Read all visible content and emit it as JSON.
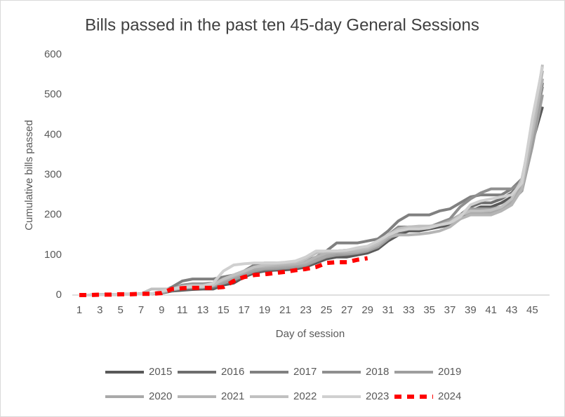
{
  "chart_data": {
    "type": "line",
    "title": "Bills passed in the past ten 45-day General Sessions",
    "x_label": "Day of session",
    "y_label": "Cumulative bills passed",
    "categories": [
      1,
      null,
      3,
      null,
      5,
      null,
      7,
      null,
      9,
      null,
      11,
      null,
      13,
      null,
      15,
      null,
      17,
      null,
      19,
      null,
      21,
      null,
      23,
      null,
      25,
      null,
      27,
      null,
      29,
      null,
      31,
      null,
      33,
      null,
      35,
      null,
      37,
      null,
      39,
      null,
      41,
      null,
      43,
      null,
      45,
      null
    ],
    "ylim": [
      0,
      600
    ],
    "yticks": [
      0,
      100,
      200,
      300,
      400,
      500,
      600
    ],
    "legend": "bottom",
    "series": [
      {
        "name": "2015",
        "color": "#595959",
        "values": [
          0,
          0,
          1,
          1,
          2,
          2,
          3,
          3,
          5,
          10,
          12,
          14,
          15,
          15,
          25,
          30,
          45,
          55,
          60,
          62,
          63,
          65,
          70,
          80,
          90,
          95,
          95,
          100,
          105,
          115,
          135,
          150,
          160,
          160,
          165,
          170,
          175,
          190,
          210,
          220,
          220,
          230,
          245,
          270,
          380,
          470
        ]
      },
      {
        "name": "2016",
        "color": "#6e6e6e",
        "values": [
          0,
          0,
          1,
          1,
          2,
          2,
          3,
          3,
          5,
          12,
          14,
          16,
          17,
          18,
          28,
          35,
          48,
          58,
          62,
          64,
          66,
          68,
          72,
          85,
          95,
          100,
          100,
          105,
          110,
          120,
          140,
          155,
          165,
          165,
          170,
          175,
          185,
          200,
          220,
          230,
          230,
          240,
          255,
          280,
          390,
          530
        ]
      },
      {
        "name": "2017",
        "color": "#808080",
        "values": [
          0,
          0,
          1,
          1,
          2,
          2,
          3,
          3,
          8,
          20,
          35,
          40,
          40,
          40,
          45,
          50,
          60,
          75,
          80,
          80,
          80,
          82,
          85,
          95,
          110,
          130,
          130,
          130,
          135,
          140,
          160,
          185,
          200,
          200,
          200,
          210,
          215,
          230,
          245,
          250,
          250,
          250,
          265,
          290,
          400,
          540
        ]
      },
      {
        "name": "2018",
        "color": "#8f8f8f",
        "values": [
          0,
          0,
          1,
          1,
          2,
          2,
          3,
          3,
          8,
          15,
          25,
          28,
          28,
          30,
          40,
          50,
          60,
          68,
          70,
          70,
          72,
          75,
          80,
          90,
          100,
          110,
          112,
          115,
          120,
          130,
          150,
          170,
          170,
          170,
          170,
          180,
          190,
          220,
          240,
          255,
          265,
          265,
          265,
          280,
          400,
          520
        ]
      },
      {
        "name": "2019",
        "color": "#9e9e9e",
        "values": [
          0,
          0,
          1,
          1,
          2,
          2,
          3,
          3,
          6,
          12,
          18,
          20,
          20,
          22,
          30,
          38,
          50,
          60,
          65,
          66,
          68,
          70,
          75,
          85,
          95,
          100,
          102,
          105,
          110,
          120,
          140,
          160,
          165,
          165,
          168,
          175,
          180,
          195,
          215,
          215,
          215,
          220,
          235,
          260,
          370,
          500
        ]
      },
      {
        "name": "2020",
        "color": "#a9a9a9",
        "values": [
          0,
          0,
          1,
          1,
          2,
          2,
          3,
          3,
          6,
          14,
          20,
          22,
          22,
          25,
          35,
          45,
          55,
          65,
          68,
          70,
          72,
          75,
          78,
          88,
          98,
          105,
          105,
          108,
          112,
          125,
          145,
          165,
          170,
          170,
          170,
          175,
          185,
          200,
          205,
          205,
          205,
          215,
          230,
          275,
          420,
          560
        ]
      },
      {
        "name": "2021",
        "color": "#b5b5b5",
        "values": [
          0,
          0,
          1,
          1,
          2,
          2,
          3,
          3,
          8,
          15,
          22,
          25,
          25,
          28,
          38,
          48,
          58,
          70,
          72,
          74,
          76,
          78,
          82,
          95,
          105,
          108,
          108,
          110,
          115,
          125,
          145,
          150,
          150,
          152,
          155,
          160,
          170,
          190,
          200,
          200,
          200,
          210,
          225,
          265,
          400,
          540
        ]
      },
      {
        "name": "2022",
        "color": "#c0c0c0",
        "values": [
          0,
          0,
          1,
          1,
          2,
          2,
          3,
          15,
          15,
          15,
          18,
          20,
          20,
          25,
          40,
          50,
          60,
          70,
          75,
          78,
          80,
          82,
          90,
          105,
          110,
          110,
          112,
          115,
          118,
          130,
          150,
          165,
          170,
          172,
          172,
          175,
          180,
          200,
          210,
          210,
          212,
          220,
          240,
          290,
          420,
          575
        ]
      },
      {
        "name": "2023",
        "color": "#d0d0d0",
        "values": [
          0,
          0,
          1,
          1,
          2,
          2,
          3,
          3,
          10,
          15,
          20,
          22,
          22,
          30,
          60,
          75,
          78,
          80,
          80,
          80,
          82,
          85,
          95,
          110,
          110,
          110,
          112,
          118,
          122,
          135,
          150,
          160,
          165,
          165,
          168,
          175,
          180,
          195,
          225,
          235,
          240,
          245,
          250,
          280,
          440,
          570
        ]
      },
      {
        "name": "2024",
        "color": "#ff0000",
        "dashed": true,
        "values": [
          0,
          0,
          1,
          1,
          2,
          2,
          3,
          3,
          5,
          15,
          17,
          18,
          18,
          18,
          20,
          35,
          45,
          50,
          52,
          55,
          58,
          62,
          65,
          70,
          80,
          82,
          82,
          88,
          92,
          null,
          null,
          null,
          null,
          null,
          null,
          null,
          null,
          null,
          null,
          null,
          null,
          null,
          null,
          null,
          null,
          null
        ]
      }
    ]
  }
}
